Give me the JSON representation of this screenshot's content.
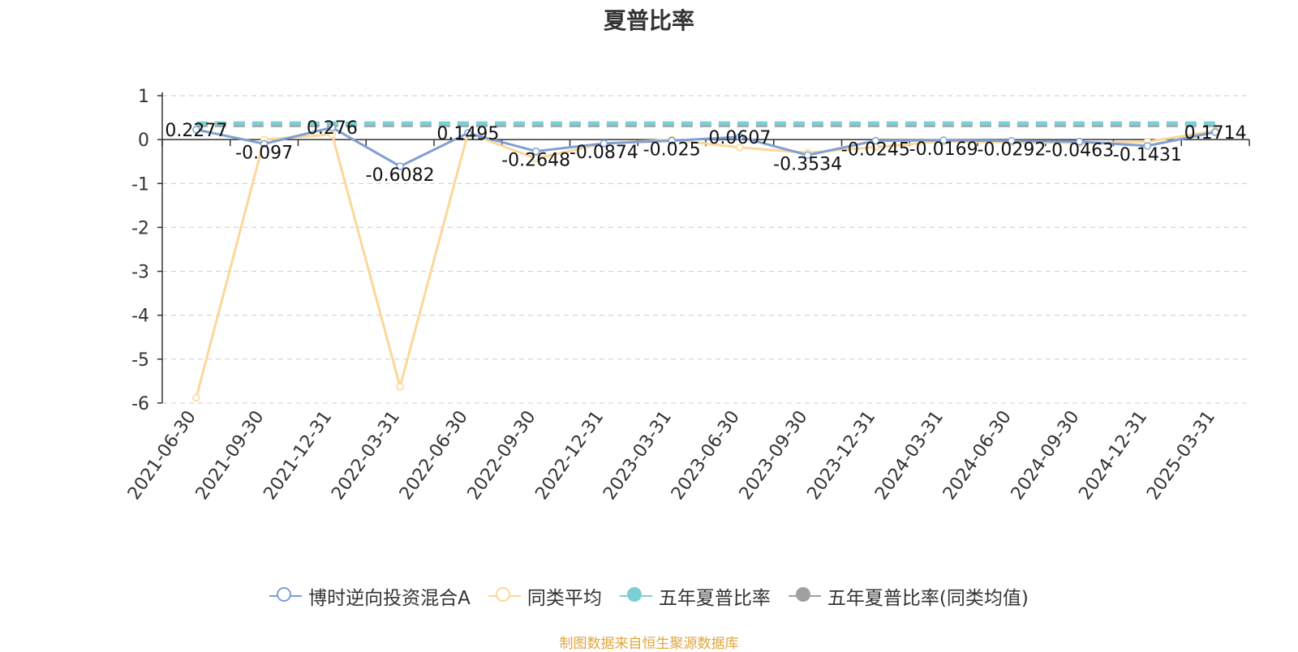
{
  "chart_data": {
    "type": "line",
    "title": "夏普比率",
    "x": [
      "2021-06-30",
      "2021-09-30",
      "2021-12-31",
      "2022-03-31",
      "2022-06-30",
      "2022-09-30",
      "2022-12-31",
      "2023-03-31",
      "2023-06-30",
      "2023-09-30",
      "2023-12-31",
      "2024-03-31",
      "2024-06-30",
      "2024-09-30",
      "2024-12-31",
      "2025-03-31"
    ],
    "y_ticks": [
      "1",
      "0",
      "-1",
      "-2",
      "-3",
      "-4",
      "-5",
      "-6"
    ],
    "ylim": [
      -6,
      1
    ],
    "grid": true,
    "legend_position": "bottom",
    "series": [
      {
        "name": "博时逆向投资混合A",
        "color": "#7f9fd3",
        "values": [
          0.2277,
          -0.097,
          0.276,
          -0.6082,
          0.1495,
          -0.2648,
          -0.0874,
          -0.025,
          0.0607,
          -0.3534,
          -0.0245,
          -0.0169,
          -0.0292,
          -0.0463,
          -0.1431,
          0.1714
        ],
        "labels": [
          "0.2277",
          "-0.097",
          "0.276",
          "-0.6082",
          "0.1495",
          "-0.2648",
          "-0.0874",
          "-0.025",
          "0.0607",
          "-0.3534",
          "-0.0245",
          "-0.0169",
          "-0.0292",
          "-0.0463",
          "-0.1431",
          "0.1714"
        ]
      },
      {
        "name": "同类平均",
        "color": "#fcd798",
        "values": [
          -5.88,
          0.0,
          0.12,
          -5.63,
          0.15,
          -0.43,
          -0.09,
          0.0,
          -0.18,
          -0.3,
          -0.17,
          -0.04,
          -0.06,
          -0.08,
          -0.05,
          0.2
        ]
      },
      {
        "name": "五年夏普比率",
        "color": "#7ccfd4",
        "values": [
          0.37,
          0.37,
          0.37,
          0.37,
          0.37,
          0.37,
          0.37,
          0.37,
          0.37,
          0.37,
          0.37,
          0.37,
          0.37,
          0.37,
          0.37,
          0.37
        ]
      },
      {
        "name": "五年夏普比率(同类均值)",
        "color": "#a0a0a0",
        "values": [
          0.33,
          0.33,
          0.33,
          0.33,
          0.33,
          0.33,
          0.33,
          0.33,
          0.33,
          0.33,
          0.33,
          0.33,
          0.33,
          0.33,
          0.33,
          0.33
        ]
      }
    ]
  },
  "footer": {
    "source": "制图数据来自恒生聚源数据库"
  }
}
